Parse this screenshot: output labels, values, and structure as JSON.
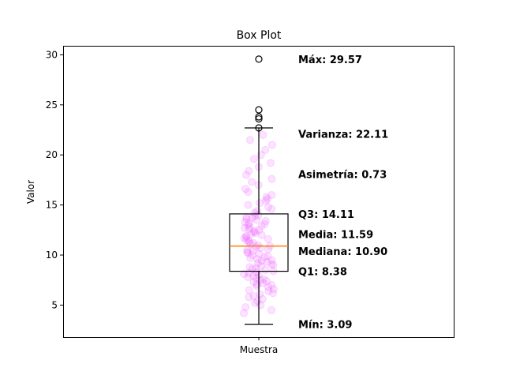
{
  "chart_data": {
    "type": "box",
    "title": "Box Plot",
    "xlabel": "",
    "ylabel": "Valor",
    "categories": [
      "Muestra"
    ],
    "ylim": [
      1.8,
      30.9
    ],
    "yticks": [
      5,
      10,
      15,
      20,
      25,
      30
    ],
    "box": {
      "min_whisker": 3.09,
      "q1": 8.38,
      "median": 10.9,
      "q3": 14.11,
      "max_whisker": 22.7,
      "outliers": [
        22.7,
        23.6,
        23.8,
        24.5,
        29.57
      ]
    },
    "colors": {
      "median": "#ff7f0e",
      "points": "#ee66ff",
      "box": "#000000"
    },
    "annotations": [
      {
        "text": "Máx: 29.57",
        "y": 29.57
      },
      {
        "text": "Varianza: 22.11",
        "y": 22.11
      },
      {
        "text": "Asimetría: 0.73",
        "y": 18.1
      },
      {
        "text": "Q3: 14.11",
        "y": 14.11
      },
      {
        "text": "Media: 11.59",
        "y": 12.1
      },
      {
        "text": "Mediana: 10.90",
        "y": 10.4
      },
      {
        "text": "Q1: 8.38",
        "y": 8.38
      },
      {
        "text": "Mín: 3.09",
        "y": 3.09
      }
    ],
    "points": [
      4.2,
      4.5,
      4.8,
      5.0,
      5.2,
      5.4,
      5.6,
      5.8,
      5.9,
      6.1,
      6.2,
      6.4,
      6.5,
      6.6,
      6.8,
      6.9,
      7.0,
      7.1,
      7.2,
      7.3,
      7.4,
      7.5,
      7.6,
      7.7,
      7.8,
      7.9,
      8.0,
      8.1,
      8.2,
      8.3,
      8.4,
      8.5,
      8.6,
      8.7,
      8.8,
      8.9,
      9.0,
      9.1,
      9.2,
      9.3,
      9.4,
      9.5,
      9.6,
      9.7,
      9.8,
      9.9,
      10.0,
      10.1,
      10.2,
      10.3,
      10.4,
      10.5,
      10.6,
      10.7,
      10.8,
      10.9,
      11.0,
      11.1,
      11.2,
      11.3,
      11.4,
      11.5,
      11.6,
      11.7,
      11.8,
      11.9,
      12.0,
      12.1,
      12.2,
      12.3,
      12.4,
      12.5,
      12.6,
      12.7,
      12.8,
      12.9,
      13.0,
      13.1,
      13.2,
      13.3,
      13.4,
      13.5,
      13.6,
      13.7,
      13.8,
      13.9,
      14.0,
      14.2,
      14.4,
      14.6,
      14.8,
      15.0,
      15.2,
      15.4,
      15.6,
      15.8,
      16.0,
      16.3,
      16.6,
      17.0,
      17.3,
      17.6,
      18.0,
      18.4,
      18.8,
      19.2,
      19.6,
      20.0,
      20.5,
      21.0,
      21.5,
      22.0
    ]
  }
}
